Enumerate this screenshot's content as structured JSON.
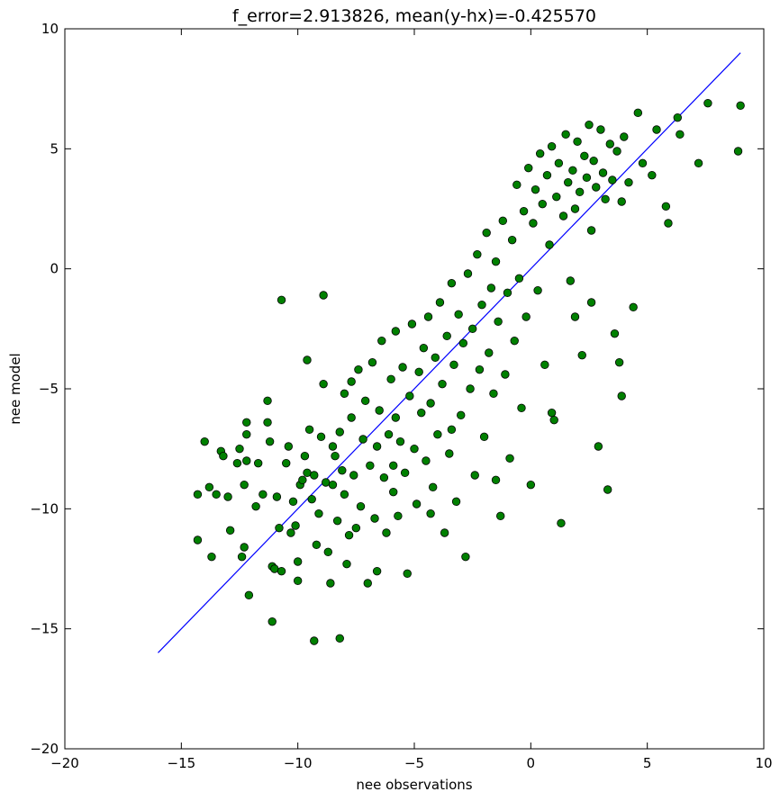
{
  "chart_data": {
    "type": "scatter",
    "title": "f_error=2.913826, mean(y-hx)=-0.425570",
    "xlabel": "nee observations",
    "ylabel": "nee model",
    "xlim": [
      -20,
      10
    ],
    "ylim": [
      -20,
      10
    ],
    "xticks": [
      -20,
      -15,
      -10,
      -5,
      0,
      5,
      10
    ],
    "yticks": [
      -20,
      -15,
      -10,
      -5,
      0,
      5,
      10
    ],
    "xtick_labels": [
      "−20",
      "−15",
      "−10",
      "−5",
      "0",
      "5",
      "10"
    ],
    "ytick_labels": [
      "−20",
      "−15",
      "−10",
      "−5",
      "0",
      "5",
      "10"
    ],
    "grid": false,
    "colors": {
      "points": "#008000",
      "point_edge": "#000000",
      "line": "#0000ff"
    },
    "series": [
      {
        "type": "line",
        "x": [
          -16,
          9
        ],
        "y": [
          -16,
          9
        ]
      },
      {
        "type": "scatter",
        "points": [
          [
            -14.3,
            -9.4
          ],
          [
            -14.3,
            -11.3
          ],
          [
            -14.0,
            -7.2
          ],
          [
            -13.7,
            -12.0
          ],
          [
            -13.8,
            -9.1
          ],
          [
            -13.5,
            -9.4
          ],
          [
            -13.3,
            -7.6
          ],
          [
            -13.2,
            -7.8
          ],
          [
            -13.0,
            -9.5
          ],
          [
            -12.9,
            -10.9
          ],
          [
            -12.6,
            -8.1
          ],
          [
            -12.5,
            -7.5
          ],
          [
            -12.3,
            -9.0
          ],
          [
            -12.2,
            -6.4
          ],
          [
            -12.2,
            -6.9
          ],
          [
            -12.2,
            -8.0
          ],
          [
            -12.4,
            -12.0
          ],
          [
            -12.3,
            -11.6
          ],
          [
            -12.1,
            -13.6
          ],
          [
            -11.8,
            -9.9
          ],
          [
            -11.7,
            -8.1
          ],
          [
            -11.5,
            -9.4
          ],
          [
            -11.3,
            -6.4
          ],
          [
            -11.3,
            -5.5
          ],
          [
            -11.2,
            -7.2
          ],
          [
            -11.1,
            -12.4
          ],
          [
            -11.1,
            -14.7
          ],
          [
            -11.0,
            -12.5
          ],
          [
            -10.9,
            -9.5
          ],
          [
            -10.8,
            -10.8
          ],
          [
            -10.7,
            -1.3
          ],
          [
            -10.7,
            -12.6
          ],
          [
            -10.5,
            -8.1
          ],
          [
            -10.4,
            -7.4
          ],
          [
            -10.3,
            -11.0
          ],
          [
            -10.2,
            -9.7
          ],
          [
            -10.1,
            -10.7
          ],
          [
            -10.0,
            -12.2
          ],
          [
            -10.0,
            -13.0
          ],
          [
            -9.9,
            -9.0
          ],
          [
            -9.8,
            -8.8
          ],
          [
            -9.7,
            -7.8
          ],
          [
            -9.6,
            -8.5
          ],
          [
            -9.6,
            -3.8
          ],
          [
            -9.5,
            -6.7
          ],
          [
            -9.4,
            -9.6
          ],
          [
            -9.3,
            -8.6
          ],
          [
            -9.2,
            -11.5
          ],
          [
            -9.1,
            -10.2
          ],
          [
            -9.0,
            -7.0
          ],
          [
            -8.9,
            -4.8
          ],
          [
            -8.8,
            -8.9
          ],
          [
            -8.7,
            -11.8
          ],
          [
            -8.6,
            -13.1
          ],
          [
            -8.5,
            -9.0
          ],
          [
            -8.5,
            -7.4
          ],
          [
            -8.4,
            -7.8
          ],
          [
            -8.3,
            -10.5
          ],
          [
            -8.2,
            -6.8
          ],
          [
            -8.1,
            -8.4
          ],
          [
            -8.0,
            -5.2
          ],
          [
            -8.0,
            -9.4
          ],
          [
            -7.9,
            -12.3
          ],
          [
            -7.8,
            -11.1
          ],
          [
            -7.7,
            -4.7
          ],
          [
            -7.7,
            -6.2
          ],
          [
            -7.6,
            -8.6
          ],
          [
            -7.5,
            -10.8
          ],
          [
            -7.4,
            -4.2
          ],
          [
            -7.3,
            -9.9
          ],
          [
            -7.2,
            -7.1
          ],
          [
            -7.1,
            -5.5
          ],
          [
            -7.0,
            -13.1
          ],
          [
            -6.9,
            -8.2
          ],
          [
            -6.8,
            -3.9
          ],
          [
            -6.7,
            -10.4
          ],
          [
            -6.6,
            -7.4
          ],
          [
            -6.6,
            -12.6
          ],
          [
            -6.5,
            -5.9
          ],
          [
            -6.4,
            -3.0
          ],
          [
            -6.3,
            -8.7
          ],
          [
            -6.2,
            -11.0
          ],
          [
            -6.1,
            -6.9
          ],
          [
            -6.0,
            -4.6
          ],
          [
            -5.9,
            -9.3
          ],
          [
            -5.8,
            -2.6
          ],
          [
            -5.8,
            -6.2
          ],
          [
            -5.7,
            -10.3
          ],
          [
            -5.6,
            -7.2
          ],
          [
            -5.5,
            -4.1
          ],
          [
            -5.4,
            -8.5
          ],
          [
            -5.3,
            -12.7
          ],
          [
            -5.2,
            -5.3
          ],
          [
            -5.1,
            -2.3
          ],
          [
            -5.0,
            -7.5
          ],
          [
            -4.9,
            -9.8
          ],
          [
            -4.8,
            -4.3
          ],
          [
            -4.7,
            -6.0
          ],
          [
            -4.6,
            -3.3
          ],
          [
            -4.5,
            -8.0
          ],
          [
            -4.4,
            -2.0
          ],
          [
            -4.3,
            -5.6
          ],
          [
            -4.2,
            -9.1
          ],
          [
            -4.1,
            -3.7
          ],
          [
            -4.0,
            -6.9
          ],
          [
            -3.9,
            -1.4
          ],
          [
            -3.8,
            -4.8
          ],
          [
            -3.7,
            -11.0
          ],
          [
            -3.6,
            -2.8
          ],
          [
            -3.5,
            -7.7
          ],
          [
            -3.4,
            -0.6
          ],
          [
            -3.3,
            -4.0
          ],
          [
            -3.2,
            -9.7
          ],
          [
            -3.1,
            -1.9
          ],
          [
            -3.0,
            -6.1
          ],
          [
            -2.9,
            -3.1
          ],
          [
            -2.8,
            -12.0
          ],
          [
            -2.7,
            -0.2
          ],
          [
            -2.6,
            -5.0
          ],
          [
            -2.5,
            -2.5
          ],
          [
            -2.4,
            -8.6
          ],
          [
            -2.3,
            0.6
          ],
          [
            -2.2,
            -4.2
          ],
          [
            -2.1,
            -1.5
          ],
          [
            -2.0,
            -7.0
          ],
          [
            -1.9,
            1.5
          ],
          [
            -1.8,
            -3.5
          ],
          [
            -1.7,
            -0.8
          ],
          [
            -1.6,
            -5.2
          ],
          [
            -1.5,
            0.3
          ],
          [
            -1.4,
            -2.2
          ],
          [
            -1.3,
            -10.3
          ],
          [
            -1.2,
            2.0
          ],
          [
            -1.1,
            -4.4
          ],
          [
            -1.0,
            -1.0
          ],
          [
            -0.9,
            -7.9
          ],
          [
            -0.8,
            1.2
          ],
          [
            -0.7,
            -3.0
          ],
          [
            -0.6,
            3.5
          ],
          [
            -0.5,
            -0.4
          ],
          [
            -0.4,
            -5.8
          ],
          [
            -0.3,
            2.4
          ],
          [
            -0.2,
            -2.0
          ],
          [
            -0.1,
            4.2
          ],
          [
            0.0,
            -9.0
          ],
          [
            0.1,
            1.9
          ],
          [
            0.2,
            3.3
          ],
          [
            0.3,
            -0.9
          ],
          [
            0.4,
            4.8
          ],
          [
            0.5,
            2.7
          ],
          [
            0.6,
            -4.0
          ],
          [
            0.7,
            3.9
          ],
          [
            0.8,
            1.0
          ],
          [
            0.9,
            5.1
          ],
          [
            1.0,
            -6.3
          ],
          [
            1.1,
            3.0
          ],
          [
            1.2,
            4.4
          ],
          [
            1.3,
            -10.6
          ],
          [
            1.4,
            2.2
          ],
          [
            1.5,
            5.6
          ],
          [
            1.6,
            3.6
          ],
          [
            1.7,
            -0.5
          ],
          [
            1.8,
            4.1
          ],
          [
            1.9,
            2.5
          ],
          [
            2.0,
            5.3
          ],
          [
            2.1,
            3.2
          ],
          [
            2.2,
            -3.6
          ],
          [
            2.3,
            4.7
          ],
          [
            2.4,
            3.8
          ],
          [
            2.5,
            6.0
          ],
          [
            2.6,
            1.6
          ],
          [
            2.7,
            4.5
          ],
          [
            2.8,
            3.4
          ],
          [
            2.9,
            -7.4
          ],
          [
            3.0,
            5.8
          ],
          [
            3.1,
            4.0
          ],
          [
            3.2,
            2.9
          ],
          [
            3.3,
            -9.2
          ],
          [
            3.4,
            5.2
          ],
          [
            3.5,
            3.7
          ],
          [
            3.6,
            -2.7
          ],
          [
            3.7,
            4.9
          ],
          [
            3.8,
            -3.9
          ],
          [
            3.9,
            2.8
          ],
          [
            4.0,
            5.5
          ],
          [
            4.2,
            3.6
          ],
          [
            4.4,
            -1.6
          ],
          [
            4.6,
            6.5
          ],
          [
            4.8,
            4.4
          ],
          [
            5.2,
            3.9
          ],
          [
            5.4,
            5.8
          ],
          [
            5.8,
            2.6
          ],
          [
            5.9,
            1.9
          ],
          [
            6.3,
            6.3
          ],
          [
            6.4,
            5.6
          ],
          [
            7.2,
            4.4
          ],
          [
            7.6,
            6.9
          ],
          [
            8.9,
            4.9
          ],
          [
            9.0,
            6.8
          ],
          [
            -8.9,
            -1.1
          ],
          [
            -8.2,
            -15.4
          ],
          [
            -9.3,
            -15.5
          ],
          [
            -5.9,
            -8.2
          ],
          [
            -4.3,
            -10.2
          ],
          [
            -1.5,
            -8.8
          ],
          [
            -3.4,
            -6.7
          ],
          [
            0.9,
            -6.0
          ],
          [
            3.9,
            -5.3
          ],
          [
            2.6,
            -1.4
          ],
          [
            1.9,
            -2.0
          ]
        ]
      }
    ]
  }
}
